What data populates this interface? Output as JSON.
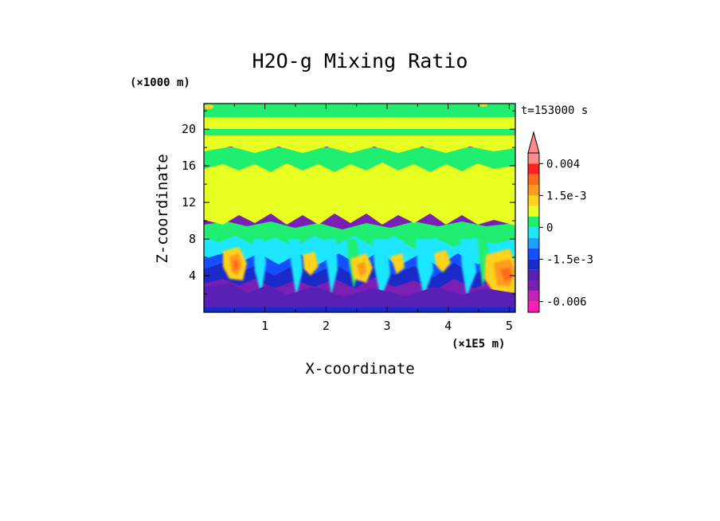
{
  "chart_data": {
    "type": "heatmap",
    "title": "H2O-g Mixing Ratio",
    "xlabel": "X-coordinate",
    "ylabel": "Z-coordinate",
    "x_unit": "(×1E5 m)",
    "y_unit": "(×1000 m)",
    "time_label": "t=153000 s",
    "xlim": [
      0,
      5.1
    ],
    "ylim": [
      0,
      22.8
    ],
    "x_ticks": [
      1,
      2,
      3,
      4,
      5
    ],
    "y_ticks": [
      4,
      8,
      12,
      16,
      20
    ],
    "grid": false,
    "colorbar": {
      "levels": [
        -0.0075,
        -0.006,
        -0.0045,
        -0.003,
        -0.002,
        -0.0015,
        -0.001,
        -0.0005,
        0,
        0.0005,
        0.001,
        0.0015,
        0.002,
        0.003,
        0.004
      ],
      "colors": [
        "#ff1fb4",
        "#c81fb4",
        "#7a1fb4",
        "#5a1fb4",
        "#1a2ac8",
        "#1450ff",
        "#1ea0ff",
        "#1ee6ff",
        "#20ee70",
        "#e6ff20",
        "#ffd21e",
        "#ff9a1e",
        "#ff6a1e",
        "#ff2020",
        "#ff8a8a"
      ],
      "tick_labels": [
        {
          "value": 0.004,
          "label": "0.004"
        },
        {
          "value": 0.0015,
          "label": "1.5e-3"
        },
        {
          "value": 0,
          "label": "0"
        },
        {
          "value": -0.0015,
          "label": "-1.5e-3"
        },
        {
          "value": -0.006,
          "label": "-0.006"
        }
      ],
      "extend_top": true
    },
    "layers": [
      {
        "z_top": 22.8,
        "z_bottom": 21.2,
        "dominant_value": "0",
        "description_color": "#20ee70"
      },
      {
        "z_top": 21.2,
        "z_bottom": 19.6,
        "dominant_value": "5e-4",
        "description_color": "#e6ff20"
      },
      {
        "z_top": 19.6,
        "z_bottom": 18.8,
        "dominant_value": "0",
        "description_color": "#20ee70"
      },
      {
        "z_top": 18.8,
        "z_bottom": 17.0,
        "dominant_value": "5e-4",
        "description_color": "#e6ff20"
      },
      {
        "z_top": 17.0,
        "z_bottom": 15.8,
        "dominant_value": "0",
        "description_color": "#20ee70"
      },
      {
        "z_top": 15.8,
        "z_bottom": 9.0,
        "dominant_value": "5e-4",
        "description_color": "#e6ff20"
      },
      {
        "z_top": 9.0,
        "z_bottom": 4.5,
        "dominant_value": "-1e-3 to 1.5e-3",
        "description_color": "#1ee6ff"
      },
      {
        "z_top": 4.5,
        "z_bottom": 0,
        "dominant_value": "-0.0045",
        "description_color": "#7a1fb4"
      }
    ]
  }
}
